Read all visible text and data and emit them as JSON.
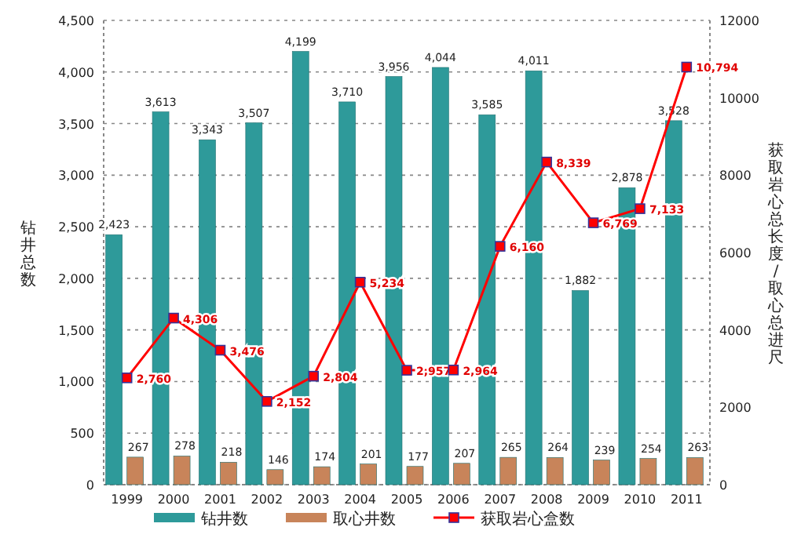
{
  "chart_data": {
    "type": "bar",
    "categories": [
      "1999",
      "2000",
      "2001",
      "2002",
      "2003",
      "2004",
      "2005",
      "2006",
      "2007",
      "2008",
      "2009",
      "2010",
      "2011"
    ],
    "ylabel": "钻井总数",
    "y2label": "获取岩心总长度/取心总进尺",
    "series": [
      {
        "name": "钻井数",
        "color": "#2e9a9a",
        "values": [
          2423,
          3613,
          3343,
          3507,
          4199,
          3710,
          3956,
          4044,
          3585,
          4011,
          1882,
          2878,
          3528
        ],
        "value_labels": [
          "2,423",
          "3,613",
          "3,343",
          "3,507",
          "4,199",
          "3,710",
          "3,956",
          "4,044",
          "3,585",
          "4,011",
          "1,882",
          "2,878",
          "3,528"
        ]
      },
      {
        "name": "取心井数",
        "color": "#c8845a",
        "values": [
          267,
          278,
          218,
          146,
          174,
          201,
          177,
          207,
          265,
          264,
          239,
          254,
          263
        ],
        "value_labels": [
          "267",
          "278",
          "218",
          "146",
          "174",
          "201",
          "177",
          "207",
          "265",
          "264",
          "239",
          "254",
          "263"
        ]
      },
      {
        "name": "获取岩心盒数",
        "type": "line",
        "axis": "y2",
        "color": "#ff0000",
        "values": [
          2760,
          4306,
          3476,
          2152,
          2804,
          5234,
          2957,
          2964,
          6160,
          8339,
          6769,
          7133,
          10794
        ],
        "value_labels": [
          "2,760",
          "4,306",
          "3,476",
          "2,152",
          "2,804",
          "5,234",
          "2,957",
          "2,964",
          "6,160",
          "8,339",
          "6,769",
          "7,133",
          "10,794"
        ]
      }
    ],
    "ylim": [
      0,
      4500
    ],
    "yticks": [
      0,
      {
        "value": 500,
        "label": "500"
      },
      {
        "value": 1000,
        "label": "1,000"
      },
      {
        "value": 1500,
        "label": "1,500"
      },
      {
        "value": 2000,
        "label": "2,000"
      },
      {
        "value": 2500,
        "label": "2,500"
      },
      {
        "value": 3000,
        "label": "3,000"
      },
      {
        "value": 3500,
        "label": "3,500"
      },
      {
        "value": 4000,
        "label": "4,000"
      },
      {
        "value": 4500,
        "label": "4,500"
      }
    ],
    "y2lim": [
      0,
      12000
    ],
    "y2ticks": [
      0,
      2000,
      4000,
      6000,
      8000,
      10000,
      12000
    ],
    "grid": "y",
    "legend": "bottom",
    "marker": "square"
  }
}
